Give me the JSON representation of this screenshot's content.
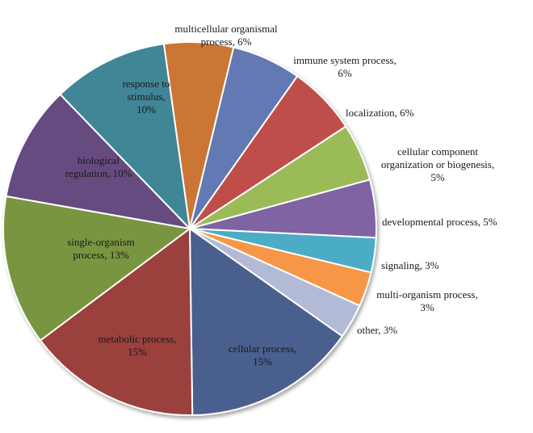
{
  "chart_data": {
    "type": "pie",
    "title": "",
    "slices": [
      {
        "label": "multicellular organismal process, 6%",
        "lines": [
          "multicellular organismal",
          "process, 6%"
        ],
        "value": 6,
        "color": "#cc7636",
        "label_pos": "outside"
      },
      {
        "label": "immune system process, 6%",
        "lines": [
          "immune system process,",
          "6%"
        ],
        "value": 6,
        "color": "#6379b4",
        "label_pos": "outside"
      },
      {
        "label": "localization, 6%",
        "lines": [
          "localization, 6%"
        ],
        "value": 6,
        "color": "#bf4e4a",
        "label_pos": "outside"
      },
      {
        "label": "cellular component organization or biogenesis, 5%",
        "lines": [
          "cellular component",
          "organization or biogenesis,",
          "5%"
        ],
        "value": 5,
        "color": "#9bbb59",
        "label_pos": "outside"
      },
      {
        "label": "developmental process, 5%",
        "lines": [
          "developmental process, 5%"
        ],
        "value": 5,
        "color": "#8064a2",
        "label_pos": "outside"
      },
      {
        "label": "signaling, 3%",
        "lines": [
          "signaling, 3%"
        ],
        "value": 3,
        "color": "#4bacc6",
        "label_pos": "outside"
      },
      {
        "label": "multi-organism process, 3%",
        "lines": [
          "multi-organism process,",
          "3%"
        ],
        "value": 3,
        "color": "#f79646",
        "label_pos": "outside"
      },
      {
        "label": "other, 3%",
        "lines": [
          "other, 3%"
        ],
        "value": 3,
        "color": "#b3bad6",
        "label_pos": "outside"
      },
      {
        "label": "cellular process, 15%",
        "lines": [
          "cellular process,",
          "15%"
        ],
        "value": 15,
        "color": "#4a5e8e",
        "label_pos": "inside"
      },
      {
        "label": "metabolic process, 15%",
        "lines": [
          "metabolic process,",
          "15%"
        ],
        "value": 15,
        "color": "#9a403d",
        "label_pos": "inside"
      },
      {
        "label": "single-organism process, 13%",
        "lines": [
          "single-organism",
          "process, 13%"
        ],
        "value": 13,
        "color": "#7a9541",
        "label_pos": "inside"
      },
      {
        "label": "biological regulation, 10%",
        "lines": [
          "biological",
          "regulation, 10%"
        ],
        "value": 10,
        "color": "#654c80",
        "label_pos": "inside"
      },
      {
        "label": "response to stimulus, 10%",
        "lines": [
          "response to",
          "stimulus,",
          "10%"
        ],
        "value": 10,
        "color": "#3f8696",
        "label_pos": "inside"
      }
    ]
  }
}
